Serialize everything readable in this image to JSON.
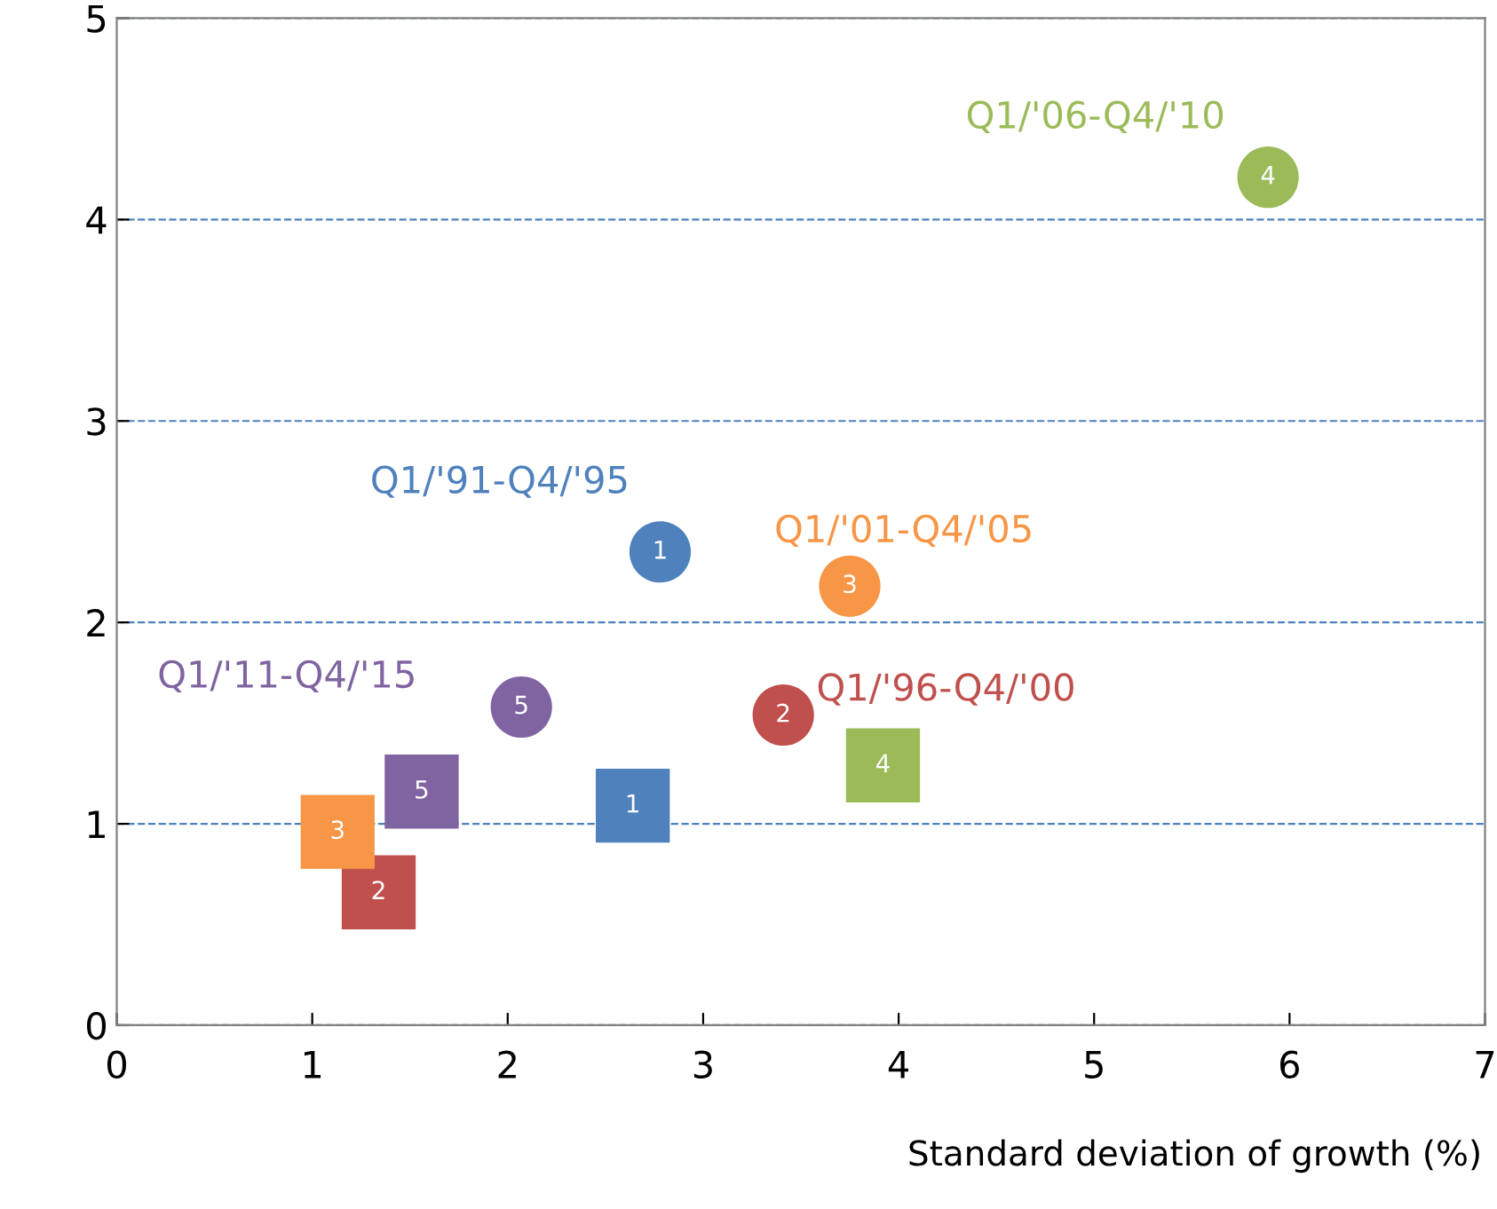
{
  "chart_data": {
    "type": "scatter",
    "xlabel": "Standard deviation of growth (%)",
    "xlim": [
      0,
      7
    ],
    "xticks": [
      0,
      1,
      2,
      3,
      4,
      5,
      6,
      7
    ],
    "ylim": [
      0,
      5
    ],
    "yticks": [
      0,
      1,
      2,
      3,
      4,
      5
    ],
    "grid": "y",
    "legend": false,
    "series": [
      {
        "name": "Q1/'91-Q4/'95",
        "color": "#4f81bd",
        "marker": "circle",
        "x": [
          2.78
        ],
        "values": [
          2.35
        ]
      },
      {
        "name": "Q1/'96-Q4/'00",
        "color": "#c0504d",
        "marker": "circle",
        "x": [
          3.41
        ],
        "values": [
          1.54
        ]
      },
      {
        "name": "Q1/'01-Q4/'05",
        "color": "#f79646",
        "marker": "circle",
        "x": [
          3.75
        ],
        "values": [
          2.18
        ]
      },
      {
        "name": "Q1/'06-Q4/'10",
        "color": "#9bbb59",
        "marker": "circle",
        "x": [
          5.89
        ],
        "values": [
          4.21
        ]
      },
      {
        "name": "Q1/'11-Q4/'15",
        "color": "#8064a2",
        "marker": "circle",
        "x": [
          2.07
        ],
        "values": [
          1.58
        ]
      },
      {
        "color": "#4f81bd",
        "marker": "square",
        "x": [
          2.64
        ],
        "values": [
          1.09
        ]
      },
      {
        "color": "#c0504d",
        "marker": "square",
        "x": [
          1.34
        ],
        "values": [
          0.66
        ]
      },
      {
        "color": "#f79646",
        "marker": "square",
        "x": [
          1.13
        ],
        "values": [
          0.96
        ]
      },
      {
        "color": "#9bbb59",
        "marker": "square",
        "x": [
          3.92
        ],
        "values": [
          1.29
        ]
      },
      {
        "color": "#8064a2",
        "marker": "square",
        "x": [
          1.56
        ],
        "values": [
          1.16
        ]
      }
    ],
    "annotations": [
      {
        "text": "1",
        "x": 2.78,
        "y": 2.35
      },
      {
        "text": "2",
        "x": 3.41,
        "y": 1.54
      },
      {
        "text": "3",
        "x": 3.75,
        "y": 2.18
      },
      {
        "text": "4",
        "x": 5.89,
        "y": 4.21
      },
      {
        "text": "5",
        "x": 2.07,
        "y": 1.58
      },
      {
        "text": "1",
        "x": 2.64,
        "y": 1.09
      },
      {
        "text": "2",
        "x": 1.34,
        "y": 0.66
      },
      {
        "text": "3",
        "x": 1.13,
        "y": 0.96
      },
      {
        "text": "4",
        "x": 3.92,
        "y": 1.29
      },
      {
        "text": "5",
        "x": 1.56,
        "y": 1.16
      }
    ]
  }
}
